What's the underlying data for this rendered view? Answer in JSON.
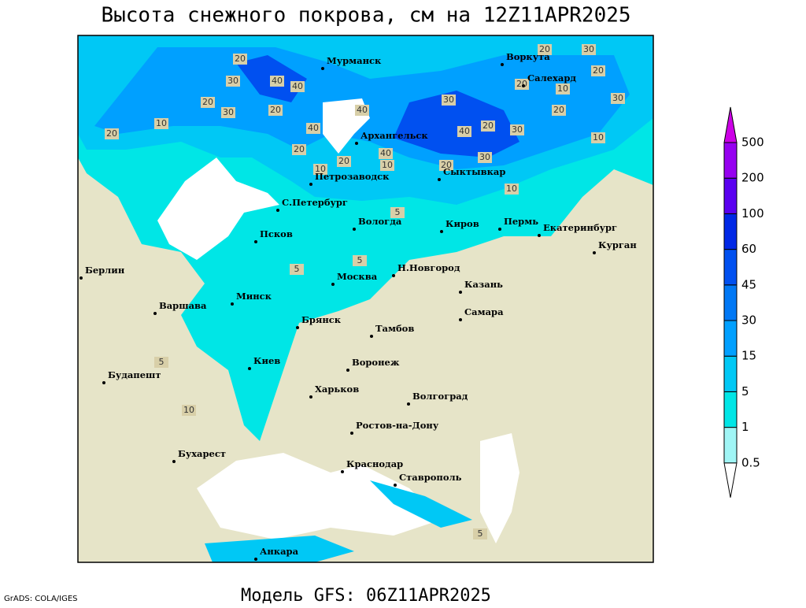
{
  "title": "Высота снежного покрова, см на 12Z11APR2025",
  "footer": "Модель GFS: 06Z11APR2025",
  "credit": "GrADS: COLA/IGES",
  "cities": [
    "Мурманск",
    "Воркута",
    "Салехард",
    "Архангельск",
    "Петрозаводск",
    "Сыктывкар",
    "С.Петербург",
    "Вологда",
    "Киров",
    "Пермь",
    "Екатеринбург",
    "Курган",
    "Псков",
    "Берлин",
    "Н.Новгород",
    "Москва",
    "Казань",
    "Минск",
    "Варшава",
    "Самара",
    "Брянск",
    "Тамбов",
    "Киев",
    "Воронеж",
    "Будапешт",
    "Харьков",
    "Волгоград",
    "Ростов-на-Дону",
    "Бухарест",
    "Краснодар",
    "Ставрополь",
    "Анкара"
  ],
  "contour_labels": [
    20,
    30,
    40,
    40,
    20,
    30,
    20,
    10,
    20,
    40,
    40,
    20,
    10,
    20,
    10,
    40,
    40,
    20,
    30,
    30,
    30,
    20,
    30,
    20,
    20,
    10,
    30,
    20,
    20,
    10,
    5,
    5,
    5,
    10,
    5,
    10,
    5
  ],
  "colorbar": {
    "levels": [
      0.5,
      1,
      5,
      15,
      30,
      45,
      60,
      100,
      200,
      500
    ],
    "colors": [
      "#ffffff",
      "#a0f5f5",
      "#00e6e6",
      "#00c8f5",
      "#00a0ff",
      "#0078f5",
      "#0050f0",
      "#0028e6",
      "#5a00f0",
      "#9600f0",
      "#cc00e6"
    ]
  }
}
